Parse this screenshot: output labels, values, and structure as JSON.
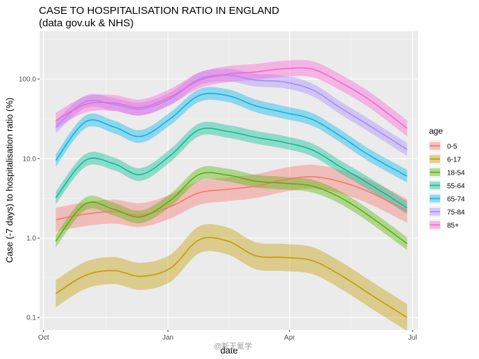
{
  "chart_data": {
    "type": "line",
    "title": "CASE TO HOSPITALISATION RATIO IN ENGLAND",
    "subtitle": "(data gov.uk & NHS)",
    "xlabel": "date",
    "ylabel": "Case (-7 days) to hospitalisation ratio (%)",
    "y_scale": "log",
    "ylim": [
      0.07,
      400
    ],
    "xlim": [
      "2020-09-28",
      "2021-07-05"
    ],
    "x_ticks": [
      {
        "date": "2020-10-01",
        "label": "Oct"
      },
      {
        "date": "2021-01-01",
        "label": "Jan"
      },
      {
        "date": "2021-04-01",
        "label": "Apr"
      },
      {
        "date": "2021-07-01",
        "label": "Jul"
      }
    ],
    "y_ticks": [
      {
        "value": 0.1,
        "label": "0.1"
      },
      {
        "value": 1,
        "label": "1.0"
      },
      {
        "value": 10,
        "label": "10.0"
      },
      {
        "value": 100,
        "label": "100.0"
      }
    ],
    "grid": true,
    "legend": {
      "title": "age",
      "position": "right"
    },
    "series": [
      {
        "name": "0-5",
        "color": "#F8766D",
        "band": 0.15,
        "x": [
          "2020-10-10",
          "2020-11-01",
          "2020-11-22",
          "2020-12-12",
          "2021-01-03",
          "2021-01-24",
          "2021-02-14",
          "2021-03-07",
          "2021-03-28",
          "2021-04-18",
          "2021-05-09",
          "2021-05-30",
          "2021-06-27"
        ],
        "y": [
          1.7,
          2.0,
          2.15,
          1.95,
          2.5,
          3.7,
          4.1,
          4.5,
          5.4,
          5.9,
          5.1,
          3.8,
          2.2
        ]
      },
      {
        "name": "6-17",
        "color": "#C49A00",
        "band": 0.17,
        "x": [
          "2020-10-10",
          "2020-11-01",
          "2020-11-22",
          "2020-12-12",
          "2021-01-03",
          "2021-01-24",
          "2021-02-14",
          "2021-03-07",
          "2021-03-28",
          "2021-04-18",
          "2021-05-09",
          "2021-05-30",
          "2021-06-27"
        ],
        "y": [
          0.2,
          0.34,
          0.39,
          0.33,
          0.42,
          0.95,
          0.92,
          0.6,
          0.57,
          0.52,
          0.34,
          0.2,
          0.1
        ]
      },
      {
        "name": "18-54",
        "color": "#53B400",
        "band": 0.08,
        "x": [
          "2020-10-10",
          "2020-11-01",
          "2020-11-22",
          "2020-12-12",
          "2021-01-03",
          "2021-01-24",
          "2021-02-14",
          "2021-03-07",
          "2021-03-28",
          "2021-04-18",
          "2021-05-09",
          "2021-05-30",
          "2021-06-27"
        ],
        "y": [
          0.92,
          2.7,
          2.3,
          1.85,
          3.0,
          6.3,
          6.2,
          5.2,
          4.9,
          4.5,
          3.2,
          1.9,
          0.85
        ]
      },
      {
        "name": "55-64",
        "color": "#00C094",
        "band": 0.08,
        "x": [
          "2020-10-10",
          "2020-11-01",
          "2020-11-22",
          "2020-12-12",
          "2021-01-03",
          "2021-01-24",
          "2021-02-14",
          "2021-03-07",
          "2021-03-28",
          "2021-04-18",
          "2021-05-09",
          "2021-05-30",
          "2021-06-27"
        ],
        "y": [
          3.2,
          9.5,
          8.6,
          6.3,
          11.0,
          23.0,
          22.0,
          18.5,
          16.0,
          12.8,
          7.8,
          4.8,
          2.4
        ]
      },
      {
        "name": "65-74",
        "color": "#00B6EB",
        "band": 0.08,
        "x": [
          "2020-10-10",
          "2020-11-01",
          "2020-11-22",
          "2020-12-12",
          "2021-01-03",
          "2021-01-24",
          "2021-02-14",
          "2021-03-07",
          "2021-03-28",
          "2021-04-18",
          "2021-05-09",
          "2021-05-30",
          "2021-06-27"
        ],
        "y": [
          9.5,
          29.0,
          25.0,
          19.0,
          32.0,
          62.0,
          62.0,
          46.0,
          38.0,
          31.0,
          19.0,
          11.0,
          6.0
        ]
      },
      {
        "name": "75-84",
        "color": "#A58AFF",
        "band": 0.08,
        "x": [
          "2020-10-10",
          "2020-11-01",
          "2020-11-22",
          "2020-12-12",
          "2021-01-03",
          "2021-01-24",
          "2021-02-14",
          "2021-03-07",
          "2021-03-28",
          "2021-04-18",
          "2021-05-09",
          "2021-05-30",
          "2021-06-27"
        ],
        "y": [
          25.0,
          52.0,
          48.0,
          42.0,
          57.0,
          100.0,
          112.0,
          97.0,
          92.0,
          73.0,
          43.0,
          26.0,
          13.0
        ]
      },
      {
        "name": "85+",
        "color": "#FB61D7",
        "band": 0.1,
        "x": [
          "2020-10-10",
          "2020-11-01",
          "2020-11-22",
          "2020-12-12",
          "2021-01-03",
          "2021-01-24",
          "2021-02-14",
          "2021-03-07",
          "2021-03-28",
          "2021-04-18",
          "2021-05-09",
          "2021-05-30",
          "2021-06-27"
        ],
        "y": [
          30.0,
          48.0,
          50.0,
          44.0,
          60.0,
          96.0,
          115.0,
          123.0,
          135.0,
          133.0,
          90.0,
          55.0,
          24.0
        ]
      }
    ]
  }
}
